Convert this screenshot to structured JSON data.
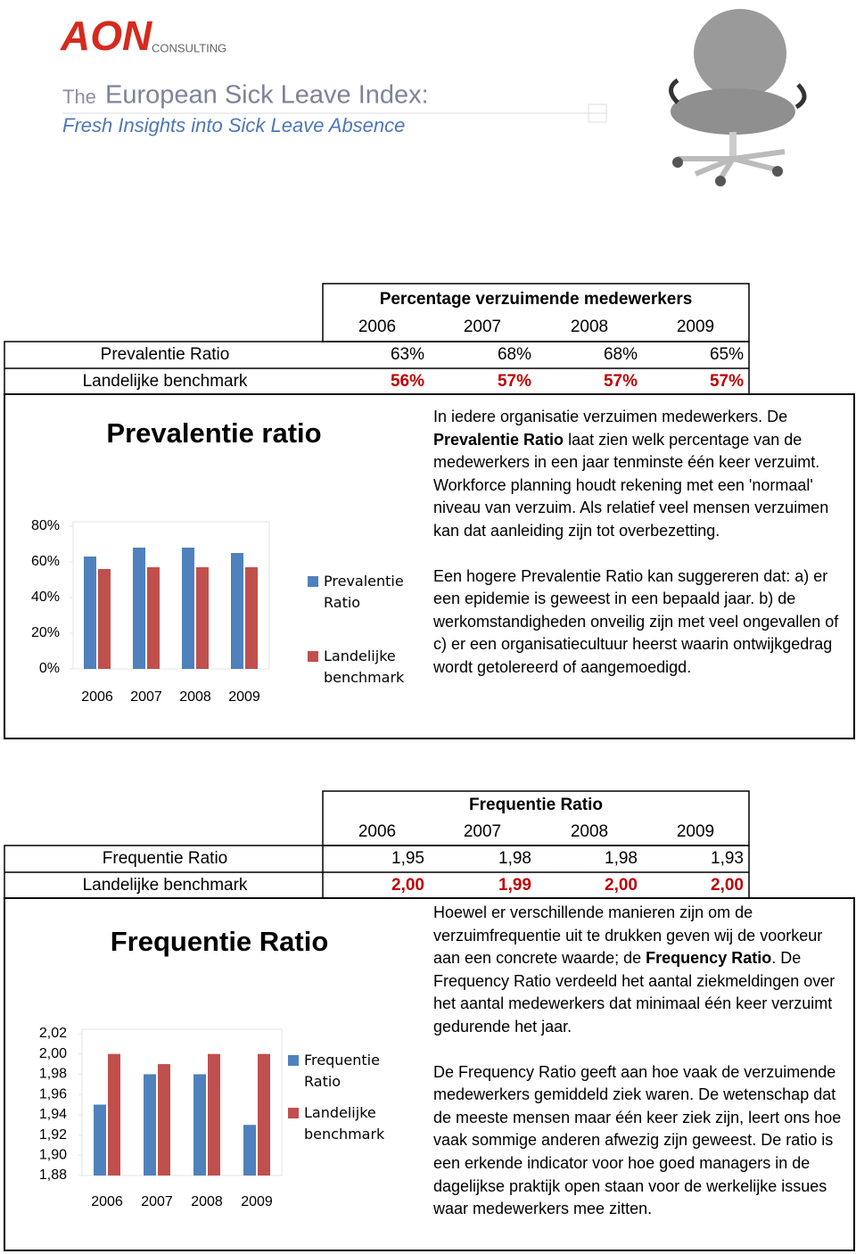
{
  "header": {
    "logo": "AON",
    "logo_sub": "CONSULTING",
    "title_prefix": "The",
    "title": "European Sick Leave Index:",
    "subtitle": "Fresh Insights into Sick Leave Absence"
  },
  "sections": [
    {
      "table": {
        "title": "Percentage verzuimende medewerkers",
        "columns": [
          "2006",
          "2007",
          "2008",
          "2009"
        ],
        "rows": [
          [
            "Prevalentie Ratio",
            "63%",
            "68%",
            "68%",
            "65%"
          ],
          [
            "Landelijke benchmark",
            "56%",
            "57%",
            "57%",
            "57%"
          ]
        ]
      },
      "paragraphs": [
        [
          {
            "text": "In iedere organisatie verzuimen medewerkers. De "
          },
          {
            "text": "Prevalentie Ratio",
            "bold": true
          },
          {
            "text": " laat zien welk percentage van de medewerkers in een jaar tenminste één keer verzuimt. Workforce planning houdt rekening met een 'normaal' niveau van verzuim. Als relatief veel mensen verzuimen kan dat aanleiding zijn tot overbezetting."
          }
        ],
        [
          {
            "text": "Een hogere Prevalentie Ratio kan suggereren dat: a) er een epidemie is geweest in een bepaald jaar. b) de werkomstandigheden onveilig zijn met veel ongevallen of c) er een organisatiecultuur heerst waarin ontwijkgedrag wordt getolereerd of aangemoedigd."
          }
        ]
      ]
    },
    {
      "table": {
        "title": "Frequentie Ratio",
        "columns": [
          "2006",
          "2007",
          "2008",
          "2009"
        ],
        "rows": [
          [
            "Frequentie Ratio",
            "1,95",
            "1,98",
            "1,98",
            "1,93"
          ],
          [
            "Landelijke benchmark",
            "2,00",
            "1,99",
            "2,00",
            "2,00"
          ]
        ]
      },
      "paragraphs": [
        [
          {
            "text": "Hoewel er verschillende manieren zijn om de verzuimfrequentie uit te drukken geven wij de voorkeur aan een concrete waarde; de "
          },
          {
            "text": "Frequency Ratio",
            "bold": true
          },
          {
            "text": ". De Frequency Ratio verdeeld het aantal ziekmeldingen over het aantal medewerkers dat minimaal één keer verzuimt gedurende het jaar."
          }
        ],
        [
          {
            "text": "De Frequency Ratio geeft aan hoe vaak de verzuimende medewerkers gemiddeld ziek waren. De wetenschap dat de meeste mensen maar één keer ziek zijn, leert ons hoe vaak sommige anderen afwezig zijn geweest. De ratio is een erkende indicator voor hoe goed managers in de dagelijkse praktijk open staan voor de werkelijke issues waar medewerkers mee zitten."
          }
        ]
      ]
    }
  ],
  "chart_data": [
    {
      "type": "bar",
      "title": "Prevalentie ratio",
      "categories": [
        "2006",
        "2007",
        "2008",
        "2009"
      ],
      "series": [
        {
          "name": "Prevalentie Ratio",
          "color": "#4f81bd",
          "values": [
            63,
            68,
            68,
            65
          ]
        },
        {
          "name": "Landelijke benchmark",
          "color": "#c0504d",
          "values": [
            56,
            57,
            57,
            57
          ]
        }
      ],
      "ylim": [
        0,
        80
      ],
      "yticks": [
        {
          "value": 0,
          "label": "0%"
        },
        {
          "value": 20,
          "label": "20%"
        },
        {
          "value": 40,
          "label": "40%"
        },
        {
          "value": 60,
          "label": "60%"
        },
        {
          "value": 80,
          "label": "80%"
        }
      ]
    },
    {
      "type": "bar",
      "title": "Frequentie Ratio",
      "categories": [
        "2006",
        "2007",
        "2008",
        "2009"
      ],
      "series": [
        {
          "name": "Frequentie Ratio",
          "color": "#4f81bd",
          "values": [
            1.95,
            1.98,
            1.98,
            1.93
          ]
        },
        {
          "name": "Landelijke benchmark",
          "color": "#c0504d",
          "values": [
            2.0,
            1.99,
            2.0,
            2.0
          ]
        }
      ],
      "ylim": [
        1.88,
        2.02
      ],
      "yticks": [
        {
          "value": 1.88,
          "label": "1,88"
        },
        {
          "value": 1.9,
          "label": "1,90"
        },
        {
          "value": 1.92,
          "label": "1,92"
        },
        {
          "value": 1.94,
          "label": "1,94"
        },
        {
          "value": 1.96,
          "label": "1,96"
        },
        {
          "value": 1.98,
          "label": "1,98"
        },
        {
          "value": 2.0,
          "label": "2,00"
        },
        {
          "value": 2.02,
          "label": "2,02"
        }
      ]
    }
  ]
}
